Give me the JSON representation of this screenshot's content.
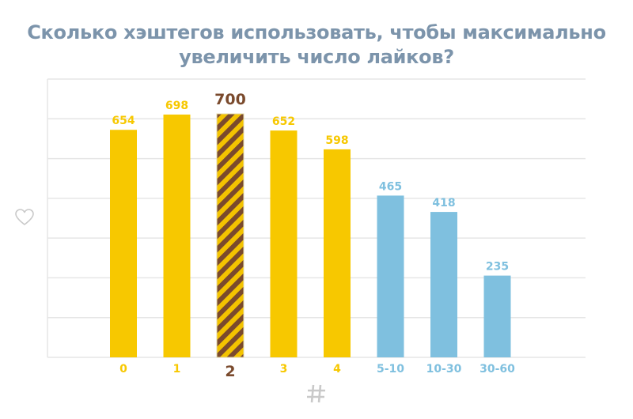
{
  "chart_data": {
    "type": "bar",
    "title_lines": [
      "Сколько хэштегов использовать, чтобы максимально",
      "увеличить число лайков?"
    ],
    "categories": [
      "0",
      "1",
      "2",
      "3",
      "4",
      "5-10",
      "10-30",
      "30-60"
    ],
    "values": [
      654,
      698,
      700,
      652,
      598,
      465,
      418,
      235
    ],
    "highlight_index": 2,
    "ylim": [
      0,
      800
    ],
    "grid": true,
    "y_axis_icon": "heart-outline-icon",
    "x_axis_icon": "hash-icon",
    "colors": {
      "yellow": "#f7c800",
      "blue": "#7fc0df",
      "highlight_brown": "#7a4a2d",
      "highlight_stripe": "#f3c300",
      "grid": "#e6e6e6",
      "title": "#7c94ab",
      "icon": "#c9c9c9"
    },
    "bar_color_groups": [
      "yellow",
      "yellow",
      "highlight_brown",
      "yellow",
      "yellow",
      "blue",
      "blue",
      "blue"
    ]
  }
}
